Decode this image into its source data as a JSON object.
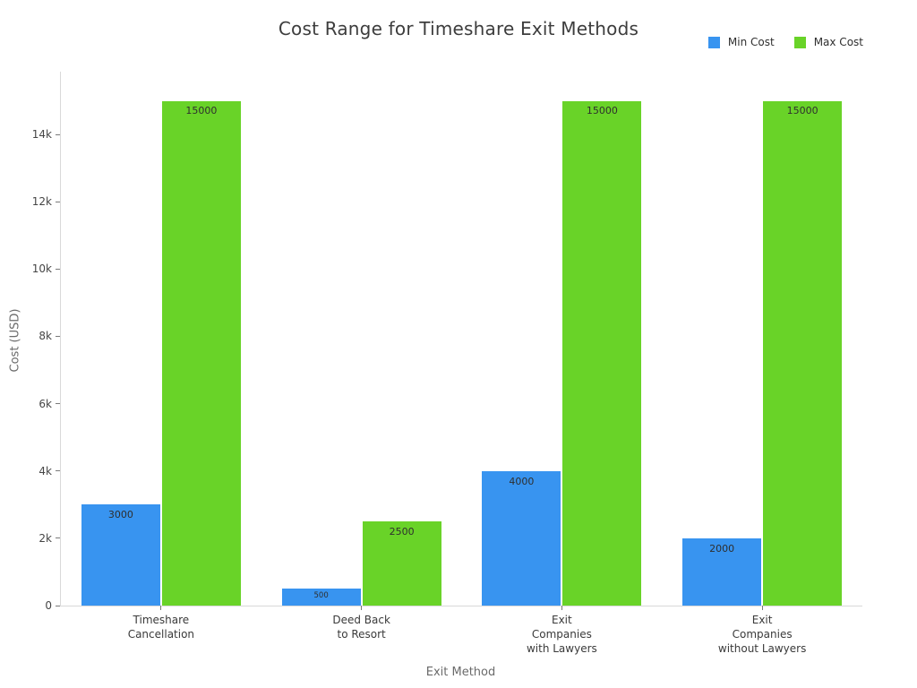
{
  "chart_data": {
    "type": "bar",
    "title": "Cost Range for Timeshare Exit Methods",
    "xlabel": "Exit Method",
    "ylabel": "Cost (USD)",
    "categories": [
      "Timeshare Cancellation",
      "Deed Back to Resort",
      "Exit Companies with Lawyers",
      "Exit Companies without Lawyers"
    ],
    "category_lines": [
      [
        "Timeshare",
        "Cancellation"
      ],
      [
        "Deed Back",
        "to Resort"
      ],
      [
        "Exit",
        "Companies",
        "with Lawyers"
      ],
      [
        "Exit",
        "Companies",
        "without Lawyers"
      ]
    ],
    "series": [
      {
        "name": "Min Cost",
        "color": "#3894F0",
        "values": [
          3000,
          500,
          4000,
          2000
        ],
        "bar_labels": [
          "3000",
          "500",
          "4000",
          "2000"
        ]
      },
      {
        "name": "Max Cost",
        "color": "#69D328",
        "values": [
          15000,
          2500,
          15000,
          15000
        ],
        "bar_labels": [
          "15000",
          "2500",
          "15000",
          "15000"
        ]
      }
    ],
    "yticks": [
      {
        "value": 0,
        "label": "0"
      },
      {
        "value": 2000,
        "label": "2k"
      },
      {
        "value": 4000,
        "label": "4k"
      },
      {
        "value": 6000,
        "label": "6k"
      },
      {
        "value": 8000,
        "label": "8k"
      },
      {
        "value": 10000,
        "label": "10k"
      },
      {
        "value": 12000,
        "label": "12k"
      },
      {
        "value": 14000,
        "label": "14k"
      }
    ],
    "ylim": [
      0,
      15865
    ],
    "grid": false,
    "legend_position": "top-right",
    "bar_label_position": "inside-top",
    "colors": {
      "min_cost": "#3894F0",
      "max_cost": "#69D328",
      "axis_line": "#d9d9d9",
      "tick_mark": "#7a7a7a",
      "title_text": "#3d3d3d",
      "axis_title_text": "#6b6b6b",
      "tick_text": "#454545",
      "bar_label_text": "#2e2e2e"
    }
  }
}
